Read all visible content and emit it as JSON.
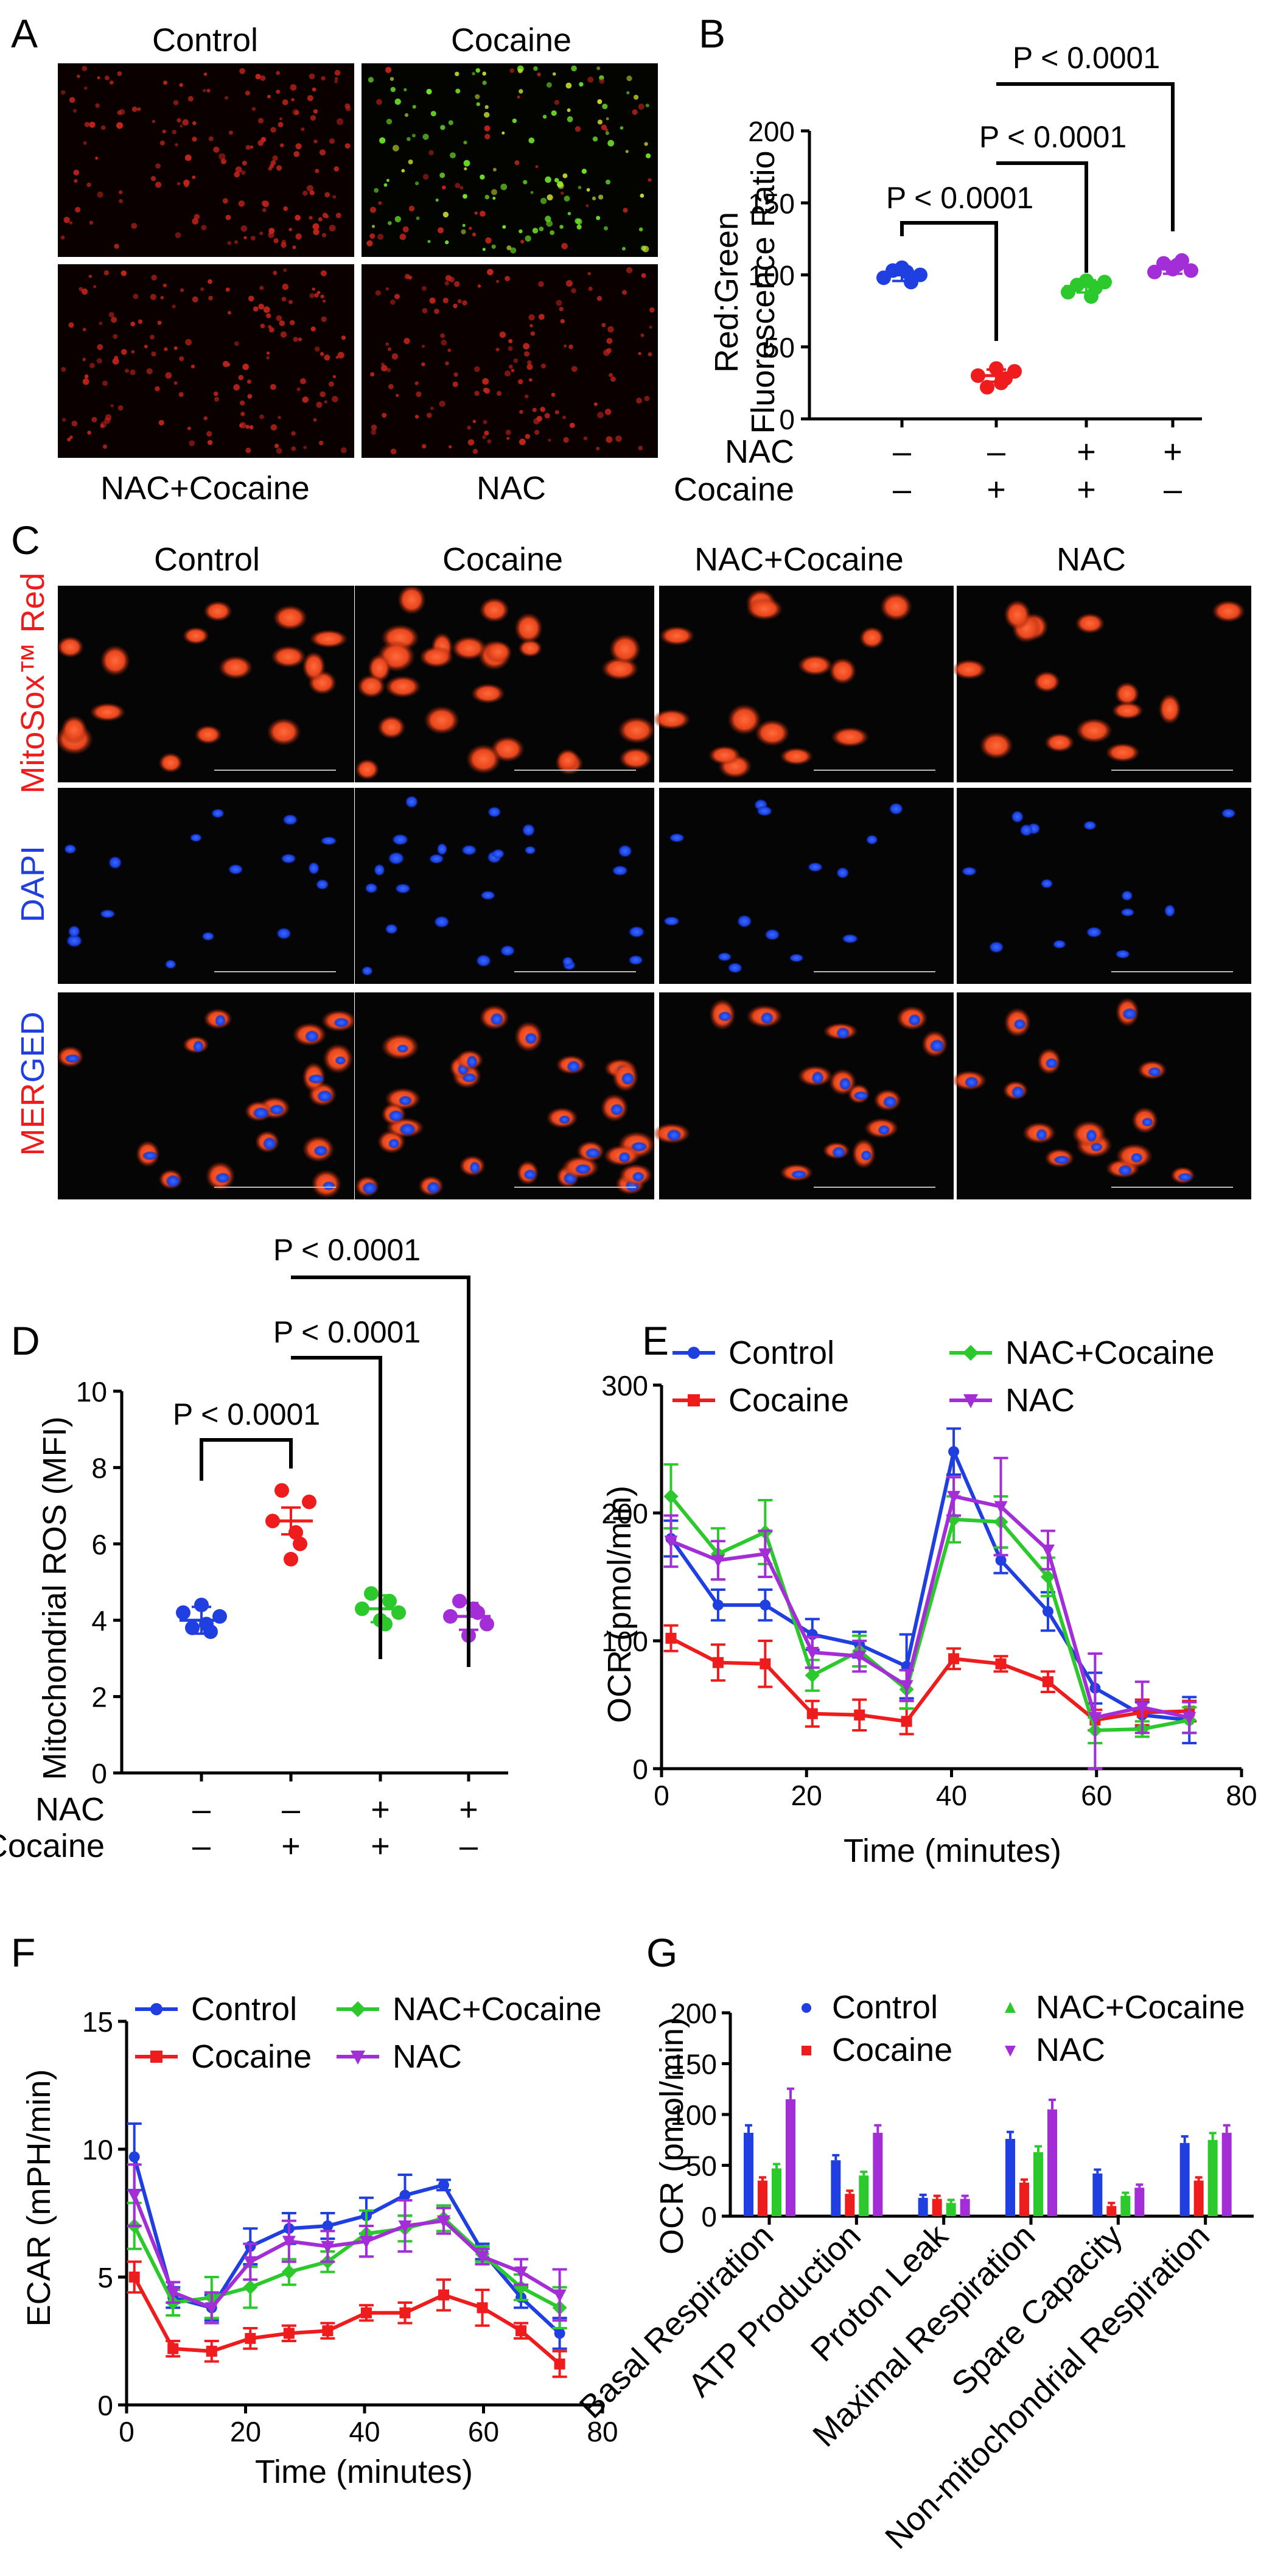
{
  "colors": {
    "control": "#1f3fe0",
    "cocaine": "#ee1c1c",
    "nac_cocaine": "#2bc92b",
    "nac": "#a32ed8"
  },
  "panel_letters": [
    "A",
    "B",
    "C",
    "D",
    "E",
    "F",
    "G"
  ],
  "panel_a": {
    "labels_top": [
      "Control",
      "Cocaine"
    ],
    "labels_bottom": [
      "NAC+Cocaine",
      "NAC"
    ]
  },
  "panel_c": {
    "columns": [
      "Control",
      "Cocaine",
      "NAC+Cocaine",
      "NAC"
    ],
    "row_label_mitosox": "MitoSox™ Red",
    "row_label_dapi": "DAPI",
    "row_label_merged_part1": "MER",
    "row_label_merged_part2": "GED"
  },
  "treatment_rows": {
    "nac_label": "NAC",
    "cocaine_label": "Cocaine",
    "nac": [
      "–",
      "–",
      "+",
      "+"
    ],
    "cocaine": [
      "–",
      "+",
      "+",
      "–"
    ]
  },
  "chart_data": [
    {
      "id": "B",
      "type": "scatter",
      "ylabel_line1": "Red:Green",
      "ylabel_line2": "Fluorescence Ratio",
      "ylim": [
        0,
        200
      ],
      "yticks": [
        "0",
        "50",
        "100",
        "150",
        "200"
      ],
      "groups": [
        "Control",
        "Cocaine",
        "NAC+Cocaine",
        "NAC"
      ],
      "means": [
        100,
        30,
        92,
        105
      ],
      "points": [
        [
          98,
          103,
          105,
          95,
          100,
          102
        ],
        [
          30,
          22,
          35,
          28,
          33,
          25
        ],
        [
          88,
          93,
          96,
          91,
          95,
          85
        ],
        [
          102,
          108,
          104,
          110,
          103,
          107
        ]
      ],
      "comparisons": [
        "P < 0.0001",
        "P < 0.0001",
        "P < 0.0001"
      ]
    },
    {
      "id": "D",
      "type": "scatter",
      "ylabel": "Mitochondrial ROS (MFI)",
      "ylim": [
        0,
        10
      ],
      "yticks": [
        "0",
        "2",
        "4",
        "6",
        "8",
        "10"
      ],
      "groups": [
        "Control",
        "Cocaine",
        "NAC+Cocaine",
        "NAC"
      ],
      "means": [
        4.0,
        6.6,
        4.3,
        4.1
      ],
      "points": [
        [
          4.2,
          3.8,
          4.4,
          3.7,
          4.1,
          3.9
        ],
        [
          6.6,
          7.4,
          5.6,
          6.0,
          7.1,
          6.3
        ],
        [
          4.3,
          4.7,
          4.0,
          4.5,
          4.2,
          3.9
        ],
        [
          4.1,
          4.5,
          3.6,
          4.2,
          3.9,
          4.3
        ]
      ],
      "comparisons": [
        "P < 0.0001",
        "P < 0.0001",
        "P < 0.0001"
      ]
    },
    {
      "id": "E",
      "type": "line",
      "xlabel": "Time (minutes)",
      "ylabel": "OCR (pmol/min)",
      "xlim": [
        0,
        80
      ],
      "ylim": [
        0,
        300
      ],
      "xticks": [
        "0",
        "20",
        "40",
        "60",
        "80"
      ],
      "yticks": [
        "0",
        "100",
        "200",
        "300"
      ],
      "x": [
        1.3,
        7.8,
        14.3,
        20.8,
        27.3,
        33.8,
        40.3,
        46.8,
        53.3,
        59.8,
        66.3,
        72.8
      ],
      "series": [
        {
          "name": "Control",
          "values": [
            180,
            128,
            128,
            105,
            97,
            80,
            248,
            163,
            123,
            63,
            42,
            38
          ],
          "err": [
            14,
            12,
            12,
            12,
            10,
            25,
            18,
            10,
            15,
            12,
            10,
            18
          ]
        },
        {
          "name": "Cocaine",
          "values": [
            102,
            83,
            82,
            43,
            42,
            37,
            86,
            82,
            68,
            38,
            44,
            45
          ],
          "err": [
            10,
            14,
            18,
            10,
            12,
            10,
            8,
            6,
            8,
            8,
            10,
            8
          ]
        },
        {
          "name": "NAC+Cocaine",
          "values": [
            213,
            168,
            185,
            73,
            92,
            62,
            195,
            193,
            150,
            30,
            31,
            38
          ],
          "err": [
            25,
            20,
            25,
            12,
            12,
            15,
            18,
            20,
            15,
            10,
            6,
            10
          ]
        },
        {
          "name": "NAC",
          "values": [
            178,
            163,
            168,
            91,
            88,
            65,
            213,
            205,
            171,
            40,
            48,
            40
          ],
          "err": [
            20,
            15,
            18,
            12,
            12,
            12,
            15,
            38,
            15,
            50,
            20,
            12
          ]
        }
      ],
      "legend": [
        "Control",
        "Cocaine",
        "NAC+Cocaine",
        "NAC"
      ]
    },
    {
      "id": "F",
      "type": "line",
      "xlabel": "Time (minutes)",
      "ylabel": "ECAR (mPH/min)",
      "xlim": [
        0,
        80
      ],
      "ylim": [
        0,
        15
      ],
      "xticks": [
        "0",
        "20",
        "40",
        "60",
        "80"
      ],
      "yticks": [
        "0",
        "5",
        "10",
        "15"
      ],
      "x": [
        1.3,
        7.8,
        14.3,
        20.8,
        27.3,
        33.8,
        40.3,
        46.8,
        53.3,
        59.8,
        66.3,
        72.8
      ],
      "series": [
        {
          "name": "Control",
          "values": [
            9.7,
            4.2,
            3.8,
            6.2,
            6.9,
            7.0,
            7.4,
            8.2,
            8.6,
            6.0,
            4.2,
            2.8
          ],
          "err": [
            1.3,
            0.4,
            0.5,
            0.7,
            0.6,
            0.5,
            0.7,
            0.8,
            0.2,
            0.3,
            0.4,
            0.6
          ]
        },
        {
          "name": "Cocaine",
          "values": [
            5.0,
            2.2,
            2.1,
            2.6,
            2.8,
            2.9,
            3.6,
            3.6,
            4.3,
            3.8,
            2.9,
            1.6
          ],
          "err": [
            0.6,
            0.3,
            0.4,
            0.4,
            0.3,
            0.3,
            0.3,
            0.4,
            0.6,
            0.7,
            0.3,
            0.5
          ]
        },
        {
          "name": "NAC+Cocaine",
          "values": [
            7.0,
            4.0,
            4.2,
            4.6,
            5.2,
            5.6,
            6.7,
            6.9,
            7.3,
            5.9,
            4.6,
            3.8
          ],
          "err": [
            0.9,
            0.5,
            0.8,
            0.8,
            0.5,
            0.4,
            0.9,
            0.5,
            0.5,
            0.3,
            0.5,
            0.8
          ]
        },
        {
          "name": "NAC",
          "values": [
            8.2,
            4.4,
            3.8,
            5.6,
            6.4,
            6.2,
            6.4,
            7.0,
            7.2,
            5.8,
            5.2,
            4.3
          ],
          "err": [
            1.2,
            0.4,
            0.6,
            0.7,
            0.8,
            0.6,
            0.6,
            1.0,
            0.5,
            0.3,
            0.5,
            1.0
          ]
        }
      ],
      "legend": [
        "Control",
        "Cocaine",
        "NAC+Cocaine",
        "NAC"
      ]
    },
    {
      "id": "G",
      "type": "bar",
      "ylabel": "OCR (pmol/min)",
      "ylim": [
        0,
        200
      ],
      "yticks": [
        "0",
        "50",
        "100",
        "150",
        "200"
      ],
      "categories": [
        "Basal Respiration",
        "ATP Production",
        "Proton Leak",
        "Maximal Respiration",
        "Spare Capacity",
        "Non-mitochondrial Respiration"
      ],
      "series": [
        {
          "name": "Control",
          "values": [
            82,
            55,
            18,
            76,
            42,
            72
          ]
        },
        {
          "name": "Cocaine",
          "values": [
            35,
            22,
            17,
            33,
            10,
            35
          ]
        },
        {
          "name": "NAC+Cocaine",
          "values": [
            47,
            40,
            13,
            63,
            20,
            75
          ]
        },
        {
          "name": "NAC",
          "values": [
            115,
            82,
            17,
            105,
            28,
            82
          ]
        }
      ],
      "legend": [
        "Control",
        "Cocaine",
        "NAC+Cocaine",
        "NAC"
      ]
    }
  ]
}
